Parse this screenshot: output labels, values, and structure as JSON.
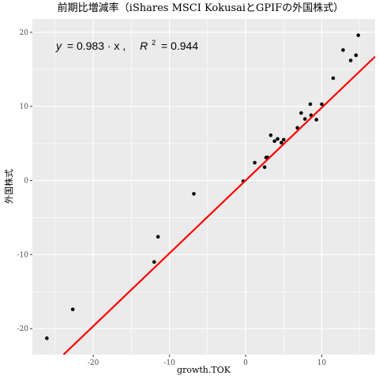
{
  "chart_data": {
    "type": "scatter",
    "title": "前期比増減率（iShares MSCI KokusaiとGPIFの外国株式）",
    "xlabel": "growth.TOK",
    "ylabel": "外国株式",
    "xlim": [
      -28.0,
      17.0
    ],
    "ylim": [
      -23.5,
      21.8
    ],
    "x_ticks": [
      -20,
      -10,
      0,
      10
    ],
    "x_tick_labels": [
      "-20",
      "-10",
      "0",
      "10"
    ],
    "y_ticks": [
      -20,
      -10,
      0,
      10,
      20
    ],
    "y_tick_labels": [
      "-20",
      "-10",
      "0",
      "10",
      "20"
    ],
    "grid": true,
    "background": "#ebebeb",
    "gridline_color": "#ffffff",
    "point_color": "#000000",
    "fit_line": {
      "slope": 0.983,
      "intercept": 0,
      "color": "#ff0000"
    },
    "annotation": {
      "lhs": "y",
      "rhs": "= 0.983 · x ,",
      "r2_label": "R",
      "r2_exp": "2",
      "r2_value": "= 0.944"
    },
    "x": [
      -26.1,
      -22.7,
      -12.0,
      -11.5,
      -6.8,
      -0.3,
      1.2,
      2.5,
      2.7,
      2.9,
      3.3,
      3.8,
      4.2,
      4.7,
      5.0,
      6.8,
      7.3,
      7.8,
      8.5,
      8.6,
      9.3,
      10.0,
      11.5,
      12.8,
      13.8,
      14.5,
      14.8
    ],
    "y": [
      -21.3,
      -17.4,
      -11.0,
      -7.6,
      -1.8,
      -0.1,
      2.4,
      1.8,
      3.1,
      3.1,
      6.1,
      5.3,
      5.6,
      5.1,
      5.5,
      7.1,
      9.1,
      8.3,
      10.3,
      8.8,
      8.2,
      10.3,
      13.8,
      17.6,
      16.2,
      16.9,
      19.6
    ]
  }
}
